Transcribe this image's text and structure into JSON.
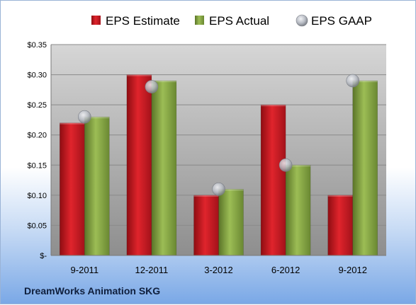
{
  "chart_data": {
    "type": "bar",
    "title": "",
    "xlabel": "",
    "ylabel": "",
    "categories": [
      "9-2011",
      "12-2011",
      "3-2012",
      "6-2012",
      "9-2012"
    ],
    "series": [
      {
        "name": "EPS Estimate",
        "kind": "bar",
        "color": "#c0141c",
        "values": [
          0.22,
          0.3,
          0.1,
          0.25,
          0.1
        ]
      },
      {
        "name": "EPS Actual",
        "kind": "bar",
        "color": "#7a9a3a",
        "values": [
          0.23,
          0.29,
          0.11,
          0.15,
          0.29
        ]
      },
      {
        "name": "EPS GAAP",
        "kind": "marker",
        "color": "#b8bcc4",
        "values": [
          0.23,
          0.28,
          0.11,
          0.15,
          0.29
        ]
      }
    ],
    "ylim": [
      0,
      0.35
    ],
    "y_ticks": [
      {
        "value": 0.35,
        "label": "$0.35"
      },
      {
        "value": 0.3,
        "label": "$0.30"
      },
      {
        "value": 0.25,
        "label": "$0.25"
      },
      {
        "value": 0.2,
        "label": "$0.20"
      },
      {
        "value": 0.15,
        "label": "$0.15"
      },
      {
        "value": 0.1,
        "label": "$0.10"
      },
      {
        "value": 0.05,
        "label": "$0.05"
      },
      {
        "value": 0,
        "label": "$-"
      }
    ],
    "grid": true,
    "legend_position": "top"
  },
  "footer": {
    "company": "DreamWorks Animation SKG"
  }
}
